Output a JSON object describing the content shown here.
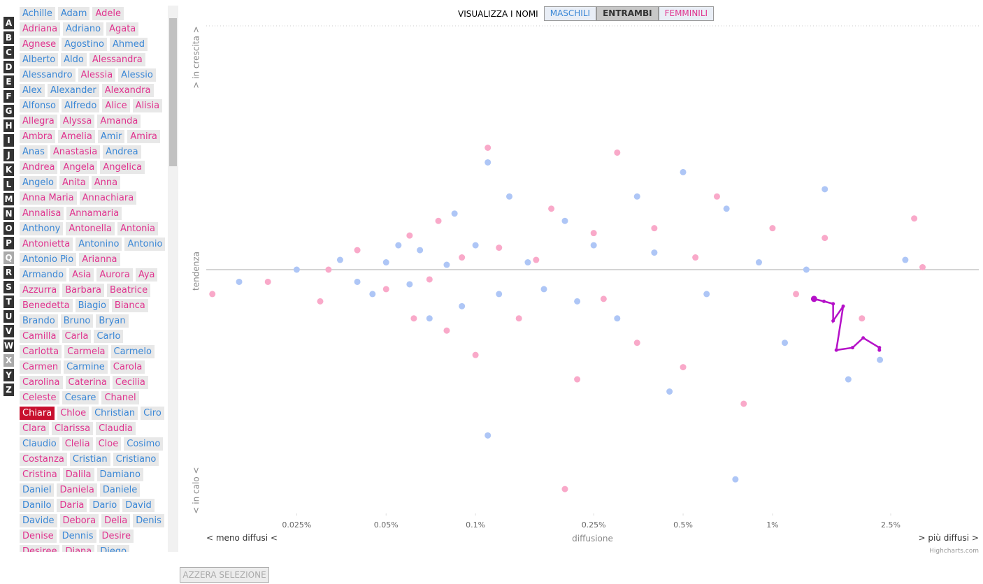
{
  "colors": {
    "male": "#3a87d6",
    "female": "#e0338e",
    "selected_bg": "#c8102e"
  },
  "letters": [
    "A",
    "B",
    "C",
    "D",
    "E",
    "F",
    "G",
    "H",
    "I",
    "J",
    "K",
    "L",
    "M",
    "N",
    "O",
    "P",
    "Q",
    "R",
    "S",
    "T",
    "U",
    "V",
    "W",
    "X",
    "Y",
    "Z"
  ],
  "inactive_letters": [
    16,
    23
  ],
  "names": [
    [
      {
        "text": "Achille",
        "gender": "m"
      },
      {
        "text": "Adam",
        "gender": "m"
      },
      {
        "text": "Adele",
        "gender": "f"
      }
    ],
    [
      {
        "text": "Adriana",
        "gender": "f"
      },
      {
        "text": "Adriano",
        "gender": "m"
      },
      {
        "text": "Agata",
        "gender": "f"
      }
    ],
    [
      {
        "text": "Agnese",
        "gender": "f"
      },
      {
        "text": "Agostino",
        "gender": "m"
      },
      {
        "text": "Ahmed",
        "gender": "m"
      }
    ],
    [
      {
        "text": "Alberto",
        "gender": "m"
      },
      {
        "text": "Aldo",
        "gender": "m"
      },
      {
        "text": "Alessandra",
        "gender": "f"
      }
    ],
    [
      {
        "text": "Alessandro",
        "gender": "m"
      },
      {
        "text": "Alessia",
        "gender": "f"
      },
      {
        "text": "Alessio",
        "gender": "m"
      }
    ],
    [
      {
        "text": "Alex",
        "gender": "m"
      },
      {
        "text": "Alexander",
        "gender": "m"
      },
      {
        "text": "Alexandra",
        "gender": "f"
      }
    ],
    [
      {
        "text": "Alfonso",
        "gender": "m"
      },
      {
        "text": "Alfredo",
        "gender": "m"
      },
      {
        "text": "Alice",
        "gender": "f"
      },
      {
        "text": "Alisia",
        "gender": "f"
      }
    ],
    [
      {
        "text": "Allegra",
        "gender": "f"
      },
      {
        "text": "Alyssa",
        "gender": "f"
      },
      {
        "text": "Amanda",
        "gender": "f"
      }
    ],
    [
      {
        "text": "Ambra",
        "gender": "f"
      },
      {
        "text": "Amelia",
        "gender": "f"
      },
      {
        "text": "Amir",
        "gender": "m"
      },
      {
        "text": "Amira",
        "gender": "f"
      }
    ],
    [
      {
        "text": "Anas",
        "gender": "m"
      },
      {
        "text": "Anastasia",
        "gender": "f"
      },
      {
        "text": "Andrea",
        "gender": "m"
      }
    ],
    [
      {
        "text": "Andrea",
        "gender": "f"
      },
      {
        "text": "Angela",
        "gender": "f"
      },
      {
        "text": "Angelica",
        "gender": "f"
      }
    ],
    [
      {
        "text": "Angelo",
        "gender": "m"
      },
      {
        "text": "Anita",
        "gender": "f"
      },
      {
        "text": "Anna",
        "gender": "f"
      }
    ],
    [
      {
        "text": "Anna Maria",
        "gender": "f"
      },
      {
        "text": "Annachiara",
        "gender": "f"
      }
    ],
    [
      {
        "text": "Annalisa",
        "gender": "f"
      },
      {
        "text": "Annamaria",
        "gender": "f"
      }
    ],
    [
      {
        "text": "Anthony",
        "gender": "m"
      },
      {
        "text": "Antonella",
        "gender": "f"
      },
      {
        "text": "Antonia",
        "gender": "f"
      }
    ],
    [
      {
        "text": "Antonietta",
        "gender": "f"
      },
      {
        "text": "Antonino",
        "gender": "m"
      },
      {
        "text": "Antonio",
        "gender": "m"
      }
    ],
    [
      {
        "text": "Antonio Pio",
        "gender": "m"
      },
      {
        "text": "Arianna",
        "gender": "f"
      }
    ],
    [
      {
        "text": "Armando",
        "gender": "m"
      },
      {
        "text": "Asia",
        "gender": "f"
      },
      {
        "text": "Aurora",
        "gender": "f"
      },
      {
        "text": "Aya",
        "gender": "f"
      }
    ],
    [
      {
        "text": "Azzurra",
        "gender": "f"
      },
      {
        "text": "Barbara",
        "gender": "f"
      },
      {
        "text": "Beatrice",
        "gender": "f"
      }
    ],
    [
      {
        "text": "Benedetta",
        "gender": "f"
      },
      {
        "text": "Biagio",
        "gender": "m"
      },
      {
        "text": "Bianca",
        "gender": "f"
      }
    ],
    [
      {
        "text": "Brando",
        "gender": "m"
      },
      {
        "text": "Bruno",
        "gender": "m"
      },
      {
        "text": "Bryan",
        "gender": "m"
      }
    ],
    [
      {
        "text": "Camilla",
        "gender": "f"
      },
      {
        "text": "Carla",
        "gender": "f"
      },
      {
        "text": "Carlo",
        "gender": "m"
      }
    ],
    [
      {
        "text": "Carlotta",
        "gender": "f"
      },
      {
        "text": "Carmela",
        "gender": "f"
      },
      {
        "text": "Carmelo",
        "gender": "m"
      }
    ],
    [
      {
        "text": "Carmen",
        "gender": "f"
      },
      {
        "text": "Carmine",
        "gender": "m"
      },
      {
        "text": "Carola",
        "gender": "f"
      }
    ],
    [
      {
        "text": "Carolina",
        "gender": "f"
      },
      {
        "text": "Caterina",
        "gender": "f"
      },
      {
        "text": "Cecilia",
        "gender": "f"
      }
    ],
    [
      {
        "text": "Celeste",
        "gender": "f"
      },
      {
        "text": "Cesare",
        "gender": "m"
      },
      {
        "text": "Chanel",
        "gender": "f"
      }
    ],
    [
      {
        "text": "Chiara",
        "gender": "f",
        "selected": true
      },
      {
        "text": "Chloe",
        "gender": "f"
      },
      {
        "text": "Christian",
        "gender": "m"
      },
      {
        "text": "Ciro",
        "gender": "m"
      }
    ],
    [
      {
        "text": "Clara",
        "gender": "f"
      },
      {
        "text": "Clarissa",
        "gender": "f"
      },
      {
        "text": "Claudia",
        "gender": "f"
      }
    ],
    [
      {
        "text": "Claudio",
        "gender": "m"
      },
      {
        "text": "Clelia",
        "gender": "f"
      },
      {
        "text": "Cloe",
        "gender": "f"
      },
      {
        "text": "Cosimo",
        "gender": "m"
      }
    ],
    [
      {
        "text": "Costanza",
        "gender": "f"
      },
      {
        "text": "Cristian",
        "gender": "m"
      },
      {
        "text": "Cristiano",
        "gender": "m"
      }
    ],
    [
      {
        "text": "Cristina",
        "gender": "f"
      },
      {
        "text": "Dalila",
        "gender": "f"
      },
      {
        "text": "Damiano",
        "gender": "m"
      }
    ],
    [
      {
        "text": "Daniel",
        "gender": "m"
      },
      {
        "text": "Daniela",
        "gender": "f"
      },
      {
        "text": "Daniele",
        "gender": "m"
      }
    ],
    [
      {
        "text": "Danilo",
        "gender": "m"
      },
      {
        "text": "Daria",
        "gender": "f"
      },
      {
        "text": "Dario",
        "gender": "m"
      },
      {
        "text": "David",
        "gender": "m"
      }
    ],
    [
      {
        "text": "Davide",
        "gender": "m"
      },
      {
        "text": "Debora",
        "gender": "f"
      },
      {
        "text": "Delia",
        "gender": "f"
      },
      {
        "text": "Denis",
        "gender": "m"
      }
    ],
    [
      {
        "text": "Denise",
        "gender": "f"
      },
      {
        "text": "Dennis",
        "gender": "m"
      },
      {
        "text": "Desire",
        "gender": "f"
      }
    ],
    [
      {
        "text": "Desiree",
        "gender": "f"
      },
      {
        "text": "Diana",
        "gender": "f"
      },
      {
        "text": "Diego",
        "gender": "m"
      }
    ]
  ],
  "toolbar": {
    "label": "VISUALIZZA I NOMI",
    "buttons": [
      {
        "text": "MASCHILI",
        "gender": "m"
      },
      {
        "text": "ENTRAMBI"
      },
      {
        "text": "FEMMINILI",
        "gender": "f"
      }
    ],
    "active": 1
  },
  "reset_button": "AZZERA SELEZIONE",
  "chart_data": {
    "type": "scatter",
    "log_x": true,
    "xlim": [
      0.0124,
      4.95
    ],
    "ylim": [
      -1,
      1
    ],
    "xticks": [
      {
        "value": 0.025,
        "label": "0.025%"
      },
      {
        "value": 0.05,
        "label": "0.05%"
      },
      {
        "value": 0.1,
        "label": "0.1%"
      },
      {
        "value": 0.25,
        "label": "0.25%"
      },
      {
        "value": 0.5,
        "label": "0.5%"
      },
      {
        "value": 1,
        "label": "1%"
      },
      {
        "value": 2.5,
        "label": "2.5%"
      }
    ],
    "x_label": "diffusione",
    "x_left_label": "< meno diffusi <",
    "x_right_label": "> più diffusi >",
    "y_label": "tendenza",
    "y_top_label": "> in crescita >",
    "y_bottom_label": "< in calo <",
    "credit": "Highcharts.com",
    "series": [
      {
        "color": "#aec6f6",
        "x": [
          0.016,
          0.025,
          0.035,
          0.04,
          0.05,
          0.055,
          0.06,
          0.065,
          0.07,
          0.08,
          0.09,
          0.1,
          0.11,
          0.12,
          0.13,
          0.15,
          0.17,
          0.2,
          0.22,
          0.25,
          0.3,
          0.35,
          0.4,
          0.45,
          0.5,
          0.6,
          0.7,
          0.75,
          0.9,
          1.1,
          1.3,
          1.5,
          1.8,
          2.3,
          2.8,
          0.11,
          0.085,
          0.045
        ],
        "values": [
          -0.05,
          0.0,
          0.04,
          -0.05,
          0.03,
          0.1,
          -0.06,
          0.08,
          -0.2,
          0.02,
          -0.15,
          0.1,
          0.44,
          -0.1,
          0.3,
          0.03,
          -0.08,
          0.2,
          -0.13,
          0.1,
          -0.2,
          0.3,
          0.07,
          -0.5,
          0.4,
          -0.1,
          0.25,
          -0.86,
          0.03,
          -0.3,
          0.0,
          0.33,
          -0.45,
          -0.37,
          0.04,
          -0.68,
          0.23,
          -0.1
        ]
      },
      {
        "color": "#f9a9c9",
        "x": [
          0.013,
          0.02,
          0.03,
          0.04,
          0.05,
          0.06,
          0.07,
          0.075,
          0.08,
          0.09,
          0.1,
          0.11,
          0.12,
          0.14,
          0.16,
          0.18,
          0.2,
          0.22,
          0.25,
          0.27,
          0.3,
          0.35,
          0.4,
          0.5,
          0.55,
          0.65,
          0.8,
          1.0,
          1.2,
          1.5,
          2.0,
          3.0,
          3.2,
          0.032,
          0.062
        ],
        "values": [
          -0.1,
          -0.05,
          -0.13,
          0.08,
          -0.08,
          0.14,
          -0.04,
          0.2,
          -0.25,
          0.05,
          -0.35,
          0.5,
          0.09,
          -0.2,
          0.04,
          0.25,
          -0.9,
          -0.45,
          0.15,
          -0.12,
          0.48,
          -0.3,
          0.17,
          -0.4,
          0.05,
          0.3,
          -0.55,
          0.17,
          -0.1,
          0.13,
          -0.2,
          0.21,
          0.01,
          0.0,
          -0.2
        ]
      },
      {
        "color": "#b511c8",
        "x": [
          1.38,
          1.49,
          1.6,
          1.6,
          1.73,
          1.64,
          1.86,
          2.02,
          2.29,
          2.29
        ],
        "values": [
          -0.12,
          -0.13,
          -0.14,
          -0.21,
          -0.15,
          -0.33,
          -0.32,
          -0.28,
          -0.32,
          -0.33
        ]
      }
    ]
  }
}
